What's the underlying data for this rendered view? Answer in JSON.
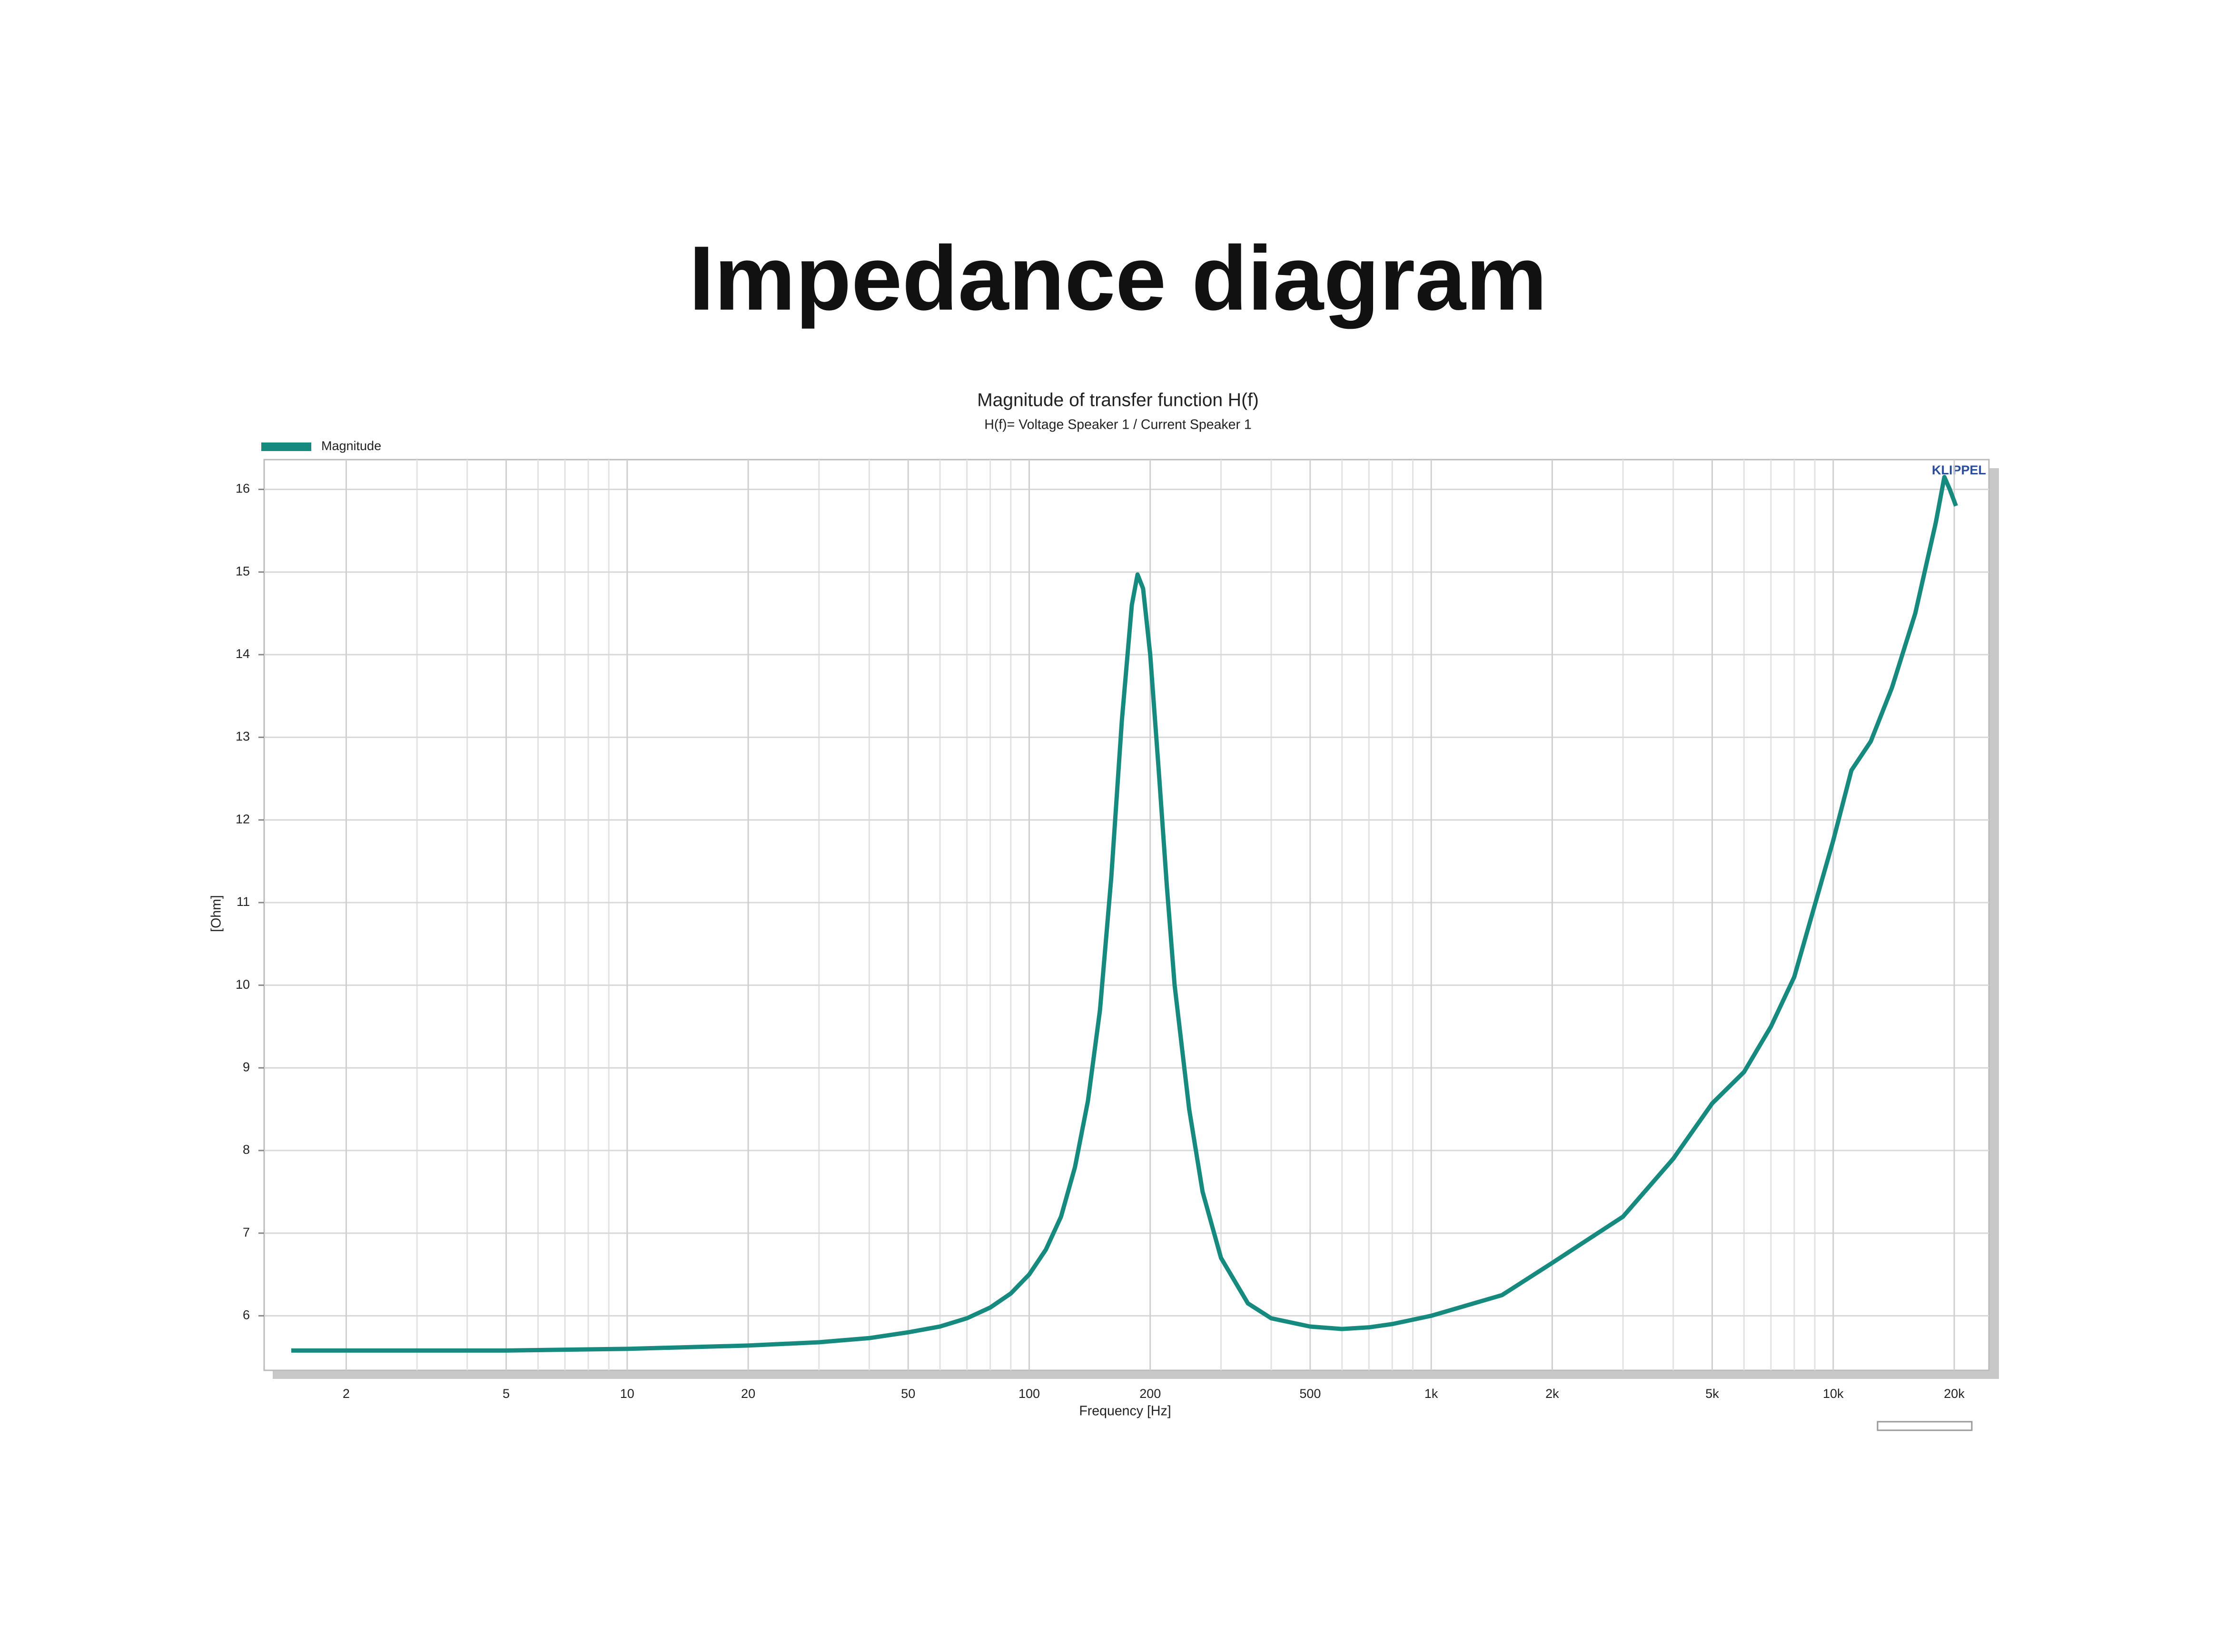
{
  "page_title": "Impedance diagram",
  "chart_data": {
    "type": "line",
    "title": "Magnitude of transfer function H(f)",
    "subtitle": "H(f)= Voltage Speaker 1 / Current Speaker 1",
    "x_label": "Frequency [Hz]",
    "y_label": "[Ohm]",
    "brand": "KLIPPEL",
    "log_x": true,
    "grid": true,
    "legend": "top-left",
    "xlim": [
      1.25,
      24400
    ],
    "ylim": [
      5.34,
      16.36
    ],
    "xticks": [
      2,
      5,
      10,
      20,
      50,
      100,
      200,
      500,
      {
        "value": 1000,
        "label": "1k"
      },
      {
        "value": 2000,
        "label": "2k"
      },
      {
        "value": 5000,
        "label": "5k"
      },
      {
        "value": 10000,
        "label": "10k"
      },
      {
        "value": 20000,
        "label": "20k"
      }
    ],
    "xminorticks": [
      3,
      4,
      6,
      7,
      8,
      9,
      30,
      40,
      60,
      70,
      80,
      90,
      300,
      400,
      600,
      700,
      800,
      900,
      3000,
      4000,
      6000,
      7000,
      8000,
      9000
    ],
    "yticks": [
      6,
      7,
      8,
      9,
      10,
      11,
      12,
      13,
      14,
      15,
      16
    ],
    "x": [
      1.46,
      2,
      5,
      10,
      20,
      30,
      40,
      50,
      60,
      70,
      80,
      90,
      100,
      110,
      120,
      130,
      140,
      150,
      160,
      170,
      180,
      186,
      192,
      200,
      210,
      220,
      230,
      250,
      270,
      300,
      350,
      400,
      500,
      600,
      700,
      800,
      1000,
      1500,
      2000,
      3000,
      4000,
      5000,
      6000,
      7000,
      8000,
      10000,
      11100,
      12400,
      14000,
      16000,
      18000,
      18900,
      19500,
      20200
    ],
    "series": [
      {
        "name": "Magnitude",
        "color": "#178a80",
        "values": [
          5.58,
          5.58,
          5.58,
          5.6,
          5.64,
          5.68,
          5.73,
          5.8,
          5.87,
          5.97,
          6.1,
          6.27,
          6.5,
          6.8,
          7.2,
          7.8,
          8.6,
          9.7,
          11.3,
          13.2,
          14.6,
          14.97,
          14.8,
          14.0,
          12.6,
          11.2,
          10.0,
          8.5,
          7.5,
          6.7,
          6.15,
          5.97,
          5.87,
          5.84,
          5.86,
          5.9,
          6.0,
          6.25,
          6.64,
          7.2,
          7.9,
          8.57,
          8.95,
          9.5,
          10.1,
          11.75,
          12.6,
          12.95,
          13.6,
          14.5,
          15.6,
          16.15,
          16.0,
          15.8
        ]
      }
    ]
  }
}
